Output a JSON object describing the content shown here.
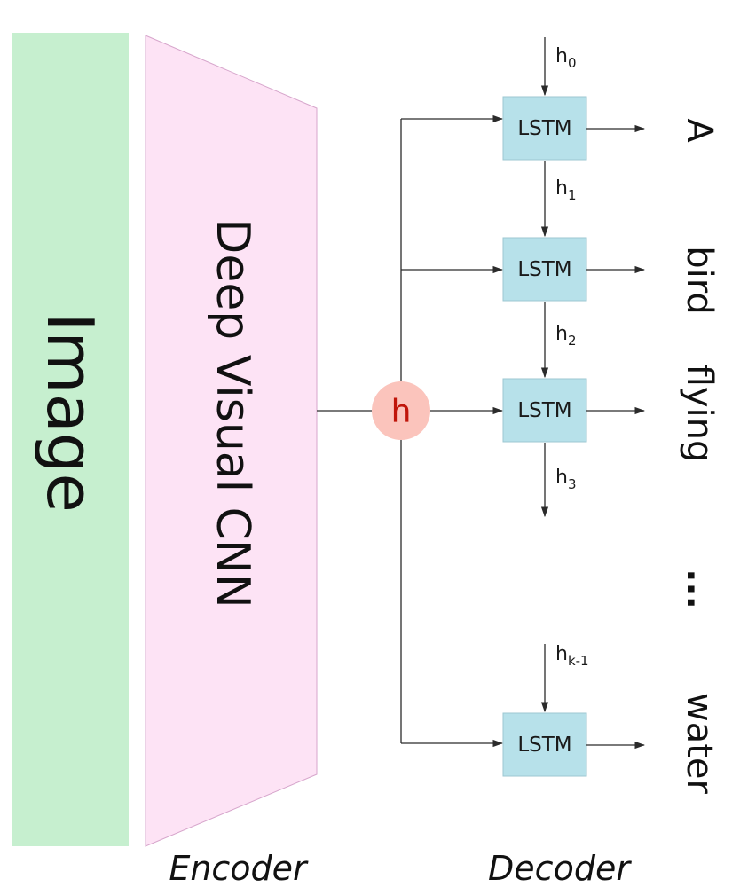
{
  "image_block": {
    "label": "Image",
    "color": "#c6efcf"
  },
  "encoder_block": {
    "label": "Deep Visual CNN",
    "color": "#fde3f5",
    "caption": "Encoder"
  },
  "hidden_node": {
    "label": "h",
    "color": "#fbc4bc",
    "text_color": "#c0150a"
  },
  "decoder": {
    "caption": "Decoder",
    "lstm_label": "LSTM",
    "lstm_color": "#b7e1ea",
    "cells": [
      {
        "label": "LSTM",
        "state_in": "h",
        "state_in_sub": "0",
        "output_word": "A"
      },
      {
        "label": "LSTM",
        "state_in": "h",
        "state_in_sub": "1",
        "output_word": "bird"
      },
      {
        "label": "LSTM",
        "state_in": "h",
        "state_in_sub": "2",
        "output_word": "flying"
      },
      {
        "label": "LSTM",
        "state_in": "h",
        "state_in_sub": "k-1",
        "output_word": "water"
      }
    ],
    "trailing_state": {
      "base": "h",
      "sub": "3"
    },
    "ellipsis": "..."
  }
}
